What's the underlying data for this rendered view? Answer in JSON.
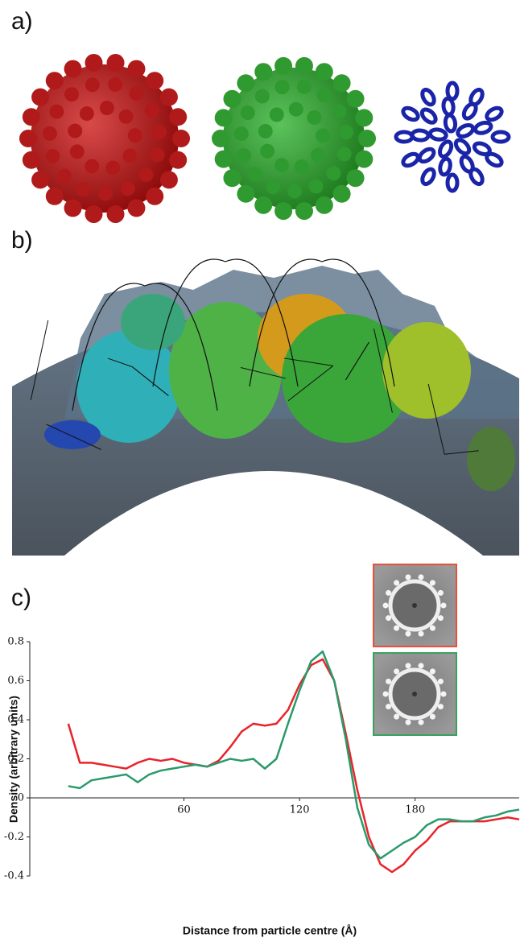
{
  "panel_labels": [
    "a)",
    "b)",
    "c)"
  ],
  "chart_data": {
    "type": "line",
    "y_label": "Density (arbitrary units)",
    "x_label": "Distance from particle centre (Å)",
    "xlim": [
      -20,
      234
    ],
    "xticks": [
      60,
      120,
      180
    ],
    "ylim": [
      -0.4,
      0.8
    ],
    "yticks": [
      -0.4,
      -0.2,
      0,
      0.2,
      0.4,
      0.6,
      0.8
    ],
    "x": [
      0,
      6,
      12,
      18,
      24,
      30,
      36,
      42,
      48,
      54,
      60,
      66,
      72,
      78,
      84,
      90,
      96,
      102,
      108,
      114,
      120,
      126,
      132,
      138,
      144,
      150,
      156,
      162,
      168,
      174,
      180,
      186,
      192,
      198,
      204,
      210,
      216,
      222,
      228,
      234
    ],
    "series": [
      {
        "color": "#e8232a",
        "values": [
          0.38,
          0.18,
          0.18,
          0.17,
          0.16,
          0.15,
          0.18,
          0.2,
          0.19,
          0.2,
          0.18,
          0.17,
          0.16,
          0.19,
          0.26,
          0.34,
          0.38,
          0.37,
          0.38,
          0.45,
          0.58,
          0.68,
          0.71,
          0.6,
          0.33,
          0.04,
          -0.2,
          -0.34,
          -0.38,
          -0.34,
          -0.27,
          -0.22,
          -0.15,
          -0.12,
          -0.12,
          -0.12,
          -0.12,
          -0.11,
          -0.1,
          -0.11
        ]
      },
      {
        "color": "#2a9a6a",
        "values": [
          0.06,
          0.05,
          0.09,
          0.1,
          0.11,
          0.12,
          0.08,
          0.12,
          0.14,
          0.15,
          0.16,
          0.17,
          0.16,
          0.18,
          0.2,
          0.19,
          0.2,
          0.15,
          0.2,
          0.38,
          0.55,
          0.7,
          0.75,
          0.6,
          0.3,
          -0.05,
          -0.24,
          -0.31,
          -0.27,
          -0.23,
          -0.2,
          -0.14,
          -0.11,
          -0.11,
          -0.12,
          -0.12,
          -0.1,
          -0.09,
          -0.07,
          -0.06
        ]
      }
    ]
  }
}
